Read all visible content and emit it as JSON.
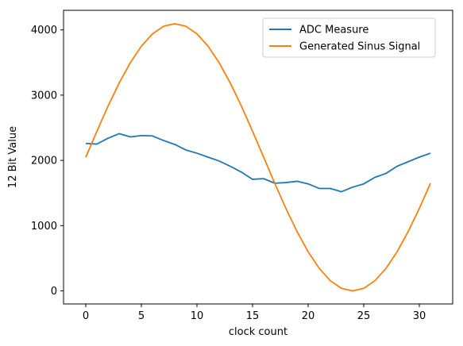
{
  "chart_data": {
    "type": "line",
    "title": "",
    "xlabel": "clock count",
    "ylabel": "12 Bit Value",
    "xlim": [
      -2,
      33
    ],
    "ylim": [
      -200,
      4300
    ],
    "xticks": [
      0,
      5,
      10,
      15,
      20,
      25,
      30
    ],
    "yticks": [
      0,
      1000,
      2000,
      3000,
      4000
    ],
    "grid": false,
    "legend_position": "top-right",
    "x": [
      0,
      1,
      2,
      3,
      4,
      5,
      6,
      7,
      8,
      9,
      10,
      11,
      12,
      13,
      14,
      15,
      16,
      17,
      18,
      19,
      20,
      21,
      22,
      23,
      24,
      25,
      26,
      27,
      28,
      29,
      30,
      31
    ],
    "series": [
      {
        "name": "ADC Measure",
        "color": "#1f77b4",
        "values": [
          2260,
          2250,
          2340,
          2410,
          2360,
          2380,
          2375,
          2305,
          2245,
          2160,
          2110,
          2050,
          1990,
          1910,
          1820,
          1710,
          1720,
          1650,
          1660,
          1680,
          1640,
          1570,
          1570,
          1520,
          1590,
          1640,
          1740,
          1800,
          1910,
          1980,
          2050,
          2110
        ]
      },
      {
        "name": "Generated Sinus Signal",
        "color": "#ff7f0e",
        "values": [
          2048,
          2447,
          2831,
          3185,
          3496,
          3750,
          3940,
          4056,
          4095,
          4056,
          3940,
          3750,
          3496,
          3185,
          2831,
          2447,
          2048,
          1648,
          1264,
          910,
          599,
          345,
          155,
          39,
          0,
          39,
          155,
          345,
          599,
          910,
          1264,
          1648
        ]
      }
    ]
  }
}
